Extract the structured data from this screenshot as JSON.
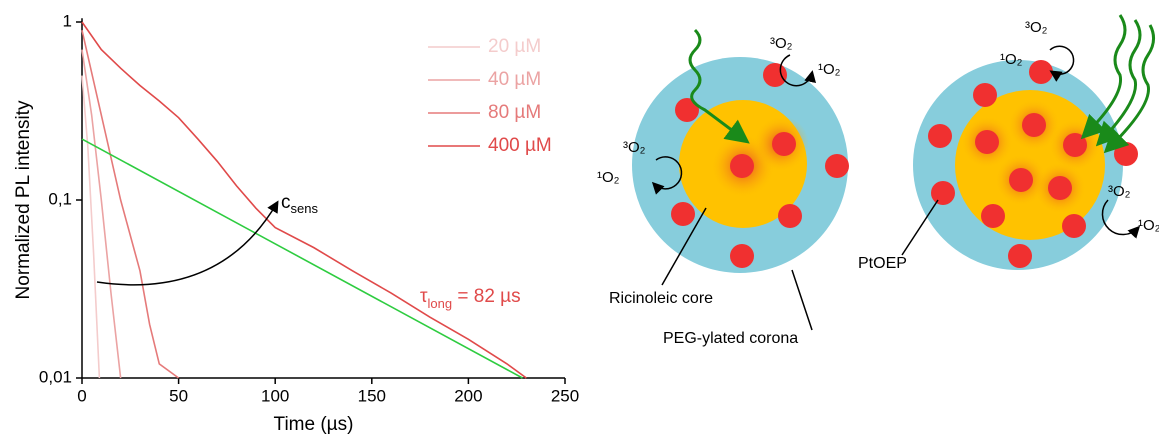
{
  "chart_data": {
    "type": "line",
    "xlabel": "Time (µs)",
    "ylabel": "Normalized PL intensity",
    "xlim": [
      0,
      250
    ],
    "xticks": [
      0,
      50,
      100,
      150,
      200,
      250
    ],
    "ylim": [
      0.01,
      1.05
    ],
    "log_y": true,
    "yticks": [
      1,
      {
        "value": 0.1,
        "label": "0,1"
      },
      {
        "value": 0.01,
        "label": "0,01"
      }
    ],
    "series": [
      {
        "name": "20 µM",
        "color": "#f4cccc",
        "x": [
          0,
          3,
          6,
          9
        ],
        "values": [
          0.5,
          0.2,
          0.05,
          0.01
        ]
      },
      {
        "name": "40 µM",
        "color": "#eba3a3",
        "x": [
          0,
          5,
          10,
          15,
          20
        ],
        "values": [
          0.7,
          0.3,
          0.1,
          0.03,
          0.01
        ]
      },
      {
        "name": "80 µM",
        "color": "#e57a7a",
        "x": [
          0,
          10,
          20,
          30,
          35,
          40,
          50
        ],
        "values": [
          0.9,
          0.3,
          0.1,
          0.04,
          0.02,
          0.012,
          0.01
        ]
      },
      {
        "name": "400 µM",
        "color": "#e04a4a",
        "x": [
          0,
          10,
          20,
          30,
          40,
          50,
          60,
          70,
          80,
          90,
          100,
          120,
          140,
          160,
          180,
          200,
          220,
          230
        ],
        "values": [
          1.0,
          0.7,
          0.55,
          0.44,
          0.36,
          0.29,
          0.22,
          0.165,
          0.12,
          0.09,
          0.07,
          0.054,
          0.04,
          0.03,
          0.022,
          0.0165,
          0.012,
          0.01
        ]
      }
    ],
    "fit": {
      "color": "#2ecc40",
      "x": [
        0,
        228
      ],
      "values": [
        0.22,
        0.01
      ]
    },
    "annotations": {
      "sens": {
        "text": "c",
        "sub": "sens"
      },
      "tau": {
        "text": "τ",
        "sub": "long",
        "rest": " = 82 µs"
      }
    }
  },
  "diagram": {
    "core": "Ricinoleic core",
    "corona": "PEG-ylated corona",
    "dye": "PtOEP",
    "triplet": "³O₂",
    "singlet": "¹O₂"
  }
}
